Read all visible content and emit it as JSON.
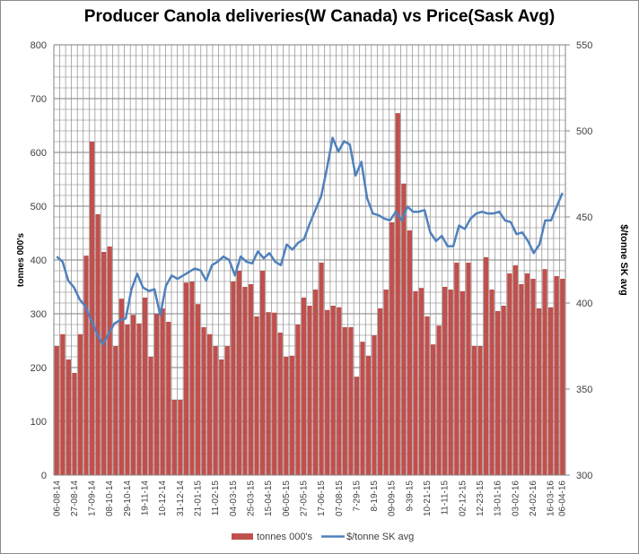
{
  "chart_data": {
    "type": "bar",
    "title": "Producer Canola deliveries(W Canada) vs Price(Sask Avg)",
    "ylabel": "tonnes 000's",
    "y2label": "$/tonne SK avg",
    "xlabel": "",
    "ylim": [
      0,
      800
    ],
    "y2lim": [
      300,
      550
    ],
    "yticks": [
      0,
      100,
      200,
      300,
      400,
      500,
      600,
      700,
      800
    ],
    "y2ticks": [
      300,
      350,
      400,
      450,
      500,
      550
    ],
    "grid": true,
    "legend_position": "bottom",
    "x_tick_labels": [
      "06-08-14",
      "27-08-14",
      "17-09-14",
      "08-10-14",
      "29-10-14",
      "19-11-14",
      "10-12-14",
      "31-12-14",
      "21-01-15",
      "11-02-15",
      "04-03-15",
      "25-03-15",
      "15-04-15",
      "06-05-15",
      "27-05-15",
      "17-06-15",
      "07-08-15",
      "7-29-15",
      "8-19-15",
      "09-09-15",
      "9-39-15",
      "10-21-15",
      "11-11-15",
      "02-12-15",
      "12-23-15",
      "13-01-16",
      "03-02-16",
      "24-02-16",
      "16-03-16",
      "06-04-16"
    ],
    "series": [
      {
        "name": "tonnes 000's",
        "type": "bar",
        "axis": "left",
        "color": "#c0504d",
        "values": [
          240,
          262,
          215,
          190,
          262,
          408,
          620,
          485,
          415,
          425,
          240,
          328,
          280,
          298,
          282,
          330,
          220,
          300,
          310,
          285,
          140,
          140,
          358,
          360,
          318,
          275,
          262,
          240,
          215,
          240,
          360,
          380,
          350,
          355,
          295,
          380,
          303,
          302,
          265,
          220,
          222,
          280,
          330,
          315,
          345,
          395,
          307,
          315,
          312,
          275,
          275,
          183,
          248,
          222,
          260,
          310,
          345,
          470,
          673,
          542,
          455,
          342,
          348,
          295,
          243,
          278,
          350,
          345,
          395,
          342,
          395,
          240,
          240,
          405,
          345,
          305,
          315,
          375,
          390,
          355,
          375,
          365,
          310,
          383,
          312,
          370,
          365
        ]
      },
      {
        "name": "$/tonne SK avg",
        "type": "line",
        "axis": "right",
        "color": "#4f81bd",
        "values": [
          427,
          424,
          413,
          409,
          402,
          398,
          390,
          382,
          376,
          382,
          388,
          390,
          391,
          408,
          417,
          409,
          407,
          408,
          393,
          410,
          416,
          414,
          416,
          418,
          420,
          419,
          413,
          422,
          424,
          427,
          425,
          416,
          427,
          424,
          423,
          430,
          426,
          429,
          424,
          422,
          434,
          431,
          435,
          437,
          446,
          454,
          462,
          478,
          496,
          488,
          494,
          492,
          474,
          482,
          461,
          452,
          451,
          449,
          448,
          453,
          448,
          456,
          453,
          453,
          454,
          441,
          436,
          439,
          433,
          433,
          445,
          443,
          449,
          452,
          453,
          452,
          452,
          453,
          448,
          447,
          440,
          441,
          436,
          429,
          434,
          448,
          448,
          456,
          464
        ]
      }
    ]
  },
  "legend": {
    "bar_label": "tonnes 000's",
    "line_label": "$/tonne SK avg"
  }
}
